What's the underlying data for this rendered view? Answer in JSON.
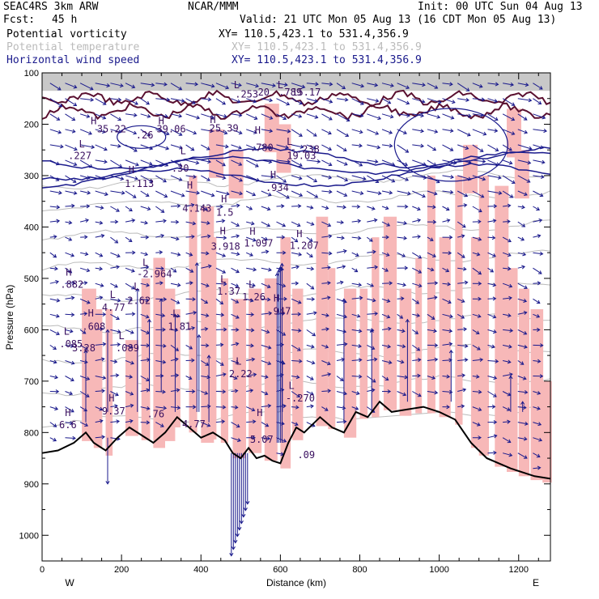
{
  "header": {
    "model": "SEAC4RS  3km ARW",
    "org": "NCAR/MMM",
    "init": "Init: 00 UTC Sun 04 Aug 13",
    "fcst_label": "Fcst:",
    "fcst_value": "45 h",
    "valid": "Valid: 21 UTC Mon 05 Aug 13 (16 CDT Mon 05 Aug 13)",
    "fields": [
      {
        "name": "Potential vorticity",
        "color": "#000000",
        "xy": "XY= 110.5,423.1 to 531.4,356.9"
      },
      {
        "name": "Potential temperature",
        "color": "#bbbbbb",
        "xy": "XY= 110.5,423.1 to 531.4,356.9"
      },
      {
        "name": "Horizontal wind speed",
        "color": "#1a1a8c",
        "xy": "XY= 110.5,423.1 to 531.4,356.9"
      }
    ]
  },
  "chart_data": {
    "type": "cross-section",
    "xlabel": "Distance (km)",
    "ylabel": "Pressure (hPa)",
    "xlim": [
      0,
      1280
    ],
    "ylim": [
      1050,
      100
    ],
    "x_ticks": [
      0,
      200,
      400,
      600,
      800,
      1000,
      1200
    ],
    "y_ticks": [
      100,
      200,
      300,
      400,
      500,
      600,
      700,
      800,
      900,
      1000
    ],
    "left_end": "W",
    "right_end": "E",
    "colors": {
      "pv_fill": "#f7b8b8",
      "pv_contour": "#5a1030",
      "wind": "#1a1a8c",
      "theta": "#bbbbbb",
      "terrain": "#000000"
    },
    "terrain": [
      [
        0,
        840
      ],
      [
        40,
        835
      ],
      [
        80,
        820
      ],
      [
        110,
        800
      ],
      [
        130,
        820
      ],
      [
        160,
        835
      ],
      [
        190,
        810
      ],
      [
        220,
        790
      ],
      [
        250,
        805
      ],
      [
        280,
        820
      ],
      [
        310,
        800
      ],
      [
        340,
        770
      ],
      [
        370,
        790
      ],
      [
        400,
        810
      ],
      [
        430,
        800
      ],
      [
        460,
        815
      ],
      [
        480,
        840
      ],
      [
        500,
        850
      ],
      [
        520,
        830
      ],
      [
        540,
        850
      ],
      [
        560,
        845
      ],
      [
        580,
        855
      ],
      [
        600,
        860
      ],
      [
        620,
        820
      ],
      [
        640,
        790
      ],
      [
        660,
        800
      ],
      [
        700,
        770
      ],
      [
        730,
        790
      ],
      [
        760,
        800
      ],
      [
        790,
        760
      ],
      [
        820,
        770
      ],
      [
        850,
        740
      ],
      [
        880,
        760
      ],
      [
        920,
        755
      ],
      [
        960,
        750
      ],
      [
        1000,
        760
      ],
      [
        1040,
        775
      ],
      [
        1080,
        820
      ],
      [
        1120,
        850
      ],
      [
        1180,
        870
      ],
      [
        1240,
        885
      ],
      [
        1280,
        890
      ]
    ],
    "labels": [
      {
        "text": "H",
        "x": 130,
        "p": 200
      },
      {
        "text": "35.22",
        "x": 175,
        "p": 216
      },
      {
        "text": "L",
        "x": 100,
        "p": 245
      },
      {
        "text": ".227",
        "x": 95,
        "p": 268
      },
      {
        "text": "H",
        "x": 300,
        "p": 200
      },
      {
        "text": "39.06",
        "x": 325,
        "p": 216
      },
      {
        "text": ".26",
        "x": 258,
        "p": 228
      },
      {
        "text": "L",
        "x": 355,
        "p": 258
      },
      {
        "text": ".30",
        "x": 348,
        "p": 292
      },
      {
        "text": "H",
        "x": 225,
        "p": 295
      },
      {
        "text": "1.113",
        "x": 245,
        "p": 322
      },
      {
        "text": "H",
        "x": 430,
        "p": 198
      },
      {
        "text": "25.39",
        "x": 458,
        "p": 214
      },
      {
        "text": "L",
        "x": 490,
        "p": 130
      },
      {
        "text": ".253",
        "x": 515,
        "p": 148
      },
      {
        "text": "20",
        "x": 558,
        "p": 144
      },
      {
        "text": "H",
        "x": 543,
        "p": 218
      },
      {
        "text": ".780",
        "x": 553,
        "p": 252
      },
      {
        "text": "L",
        "x": 600,
        "p": 130
      },
      {
        "text": ".789",
        "x": 625,
        "p": 144
      },
      {
        "text": "15.17",
        "x": 665,
        "p": 144
      },
      {
        "text": "L",
        "x": 623,
        "p": 240
      },
      {
        "text": "-.238",
        "x": 662,
        "p": 255
      },
      {
        "text": "19.03",
        "x": 653,
        "p": 268
      },
      {
        "text": "H",
        "x": 372,
        "p": 325
      },
      {
        "text": "4.143",
        "x": 390,
        "p": 370
      },
      {
        "text": "H",
        "x": 458,
        "p": 352
      },
      {
        "text": "1.5",
        "x": 460,
        "p": 378
      },
      {
        "text": "H",
        "x": 582,
        "p": 305
      },
      {
        "text": ".934",
        "x": 592,
        "p": 330
      },
      {
        "text": "H",
        "x": 455,
        "p": 414
      },
      {
        "text": "3.918",
        "x": 462,
        "p": 444
      },
      {
        "text": "H",
        "x": 530,
        "p": 415
      },
      {
        "text": "1.097",
        "x": 545,
        "p": 438
      },
      {
        "text": "H",
        "x": 648,
        "p": 420
      },
      {
        "text": "1.207",
        "x": 660,
        "p": 443
      },
      {
        "text": "L",
        "x": 260,
        "p": 476
      },
      {
        "text": "-2.964",
        "x": 283,
        "p": 498
      },
      {
        "text": "H",
        "x": 67,
        "p": 495
      },
      {
        "text": ".882",
        "x": 75,
        "p": 518
      },
      {
        "text": "L",
        "x": 456,
        "p": 508
      },
      {
        "text": "1.37",
        "x": 470,
        "p": 532
      },
      {
        "text": "L",
        "x": 527,
        "p": 518
      },
      {
        "text": "1.26",
        "x": 533,
        "p": 543
      },
      {
        "text": "L",
        "x": 178,
        "p": 538
      },
      {
        "text": "4.77",
        "x": 180,
        "p": 563
      },
      {
        "text": "L",
        "x": 238,
        "p": 522
      },
      {
        "text": "2.62",
        "x": 244,
        "p": 550
      },
      {
        "text": "H",
        "x": 590,
        "p": 545
      },
      {
        "text": ".947",
        "x": 597,
        "p": 570
      },
      {
        "text": "H",
        "x": 123,
        "p": 574
      },
      {
        "text": ".608",
        "x": 130,
        "p": 600
      },
      {
        "text": "L",
        "x": 336,
        "p": 575
      },
      {
        "text": "1.81",
        "x": 346,
        "p": 600
      },
      {
        "text": "L",
        "x": 62,
        "p": 610
      },
      {
        "text": ".085",
        "x": 73,
        "p": 634
      },
      {
        "text": "3.28",
        "x": 105,
        "p": 642
      },
      {
        "text": "L",
        "x": 200,
        "p": 618
      },
      {
        "text": ".089",
        "x": 215,
        "p": 642
      },
      {
        "text": "L",
        "x": 495,
        "p": 668
      },
      {
        "text": "2.22",
        "x": 500,
        "p": 692
      },
      {
        "text": "H",
        "x": 175,
        "p": 740
      },
      {
        "text": "9.37",
        "x": 180,
        "p": 765
      },
      {
        "text": "H",
        "x": 65,
        "p": 768
      },
      {
        "text": "6.6",
        "x": 65,
        "p": 792
      },
      {
        "text": "L",
        "x": 628,
        "p": 715
      },
      {
        "text": "-.270",
        "x": 650,
        "p": 740
      },
      {
        "text": ".76",
        "x": 286,
        "p": 770
      },
      {
        "text": "4.77",
        "x": 382,
        "p": 790
      },
      {
        "text": "H",
        "x": 548,
        "p": 768
      },
      {
        "text": "5.07",
        "x": 553,
        "p": 820
      },
      {
        "text": ".09",
        "x": 665,
        "p": 850
      }
    ]
  }
}
